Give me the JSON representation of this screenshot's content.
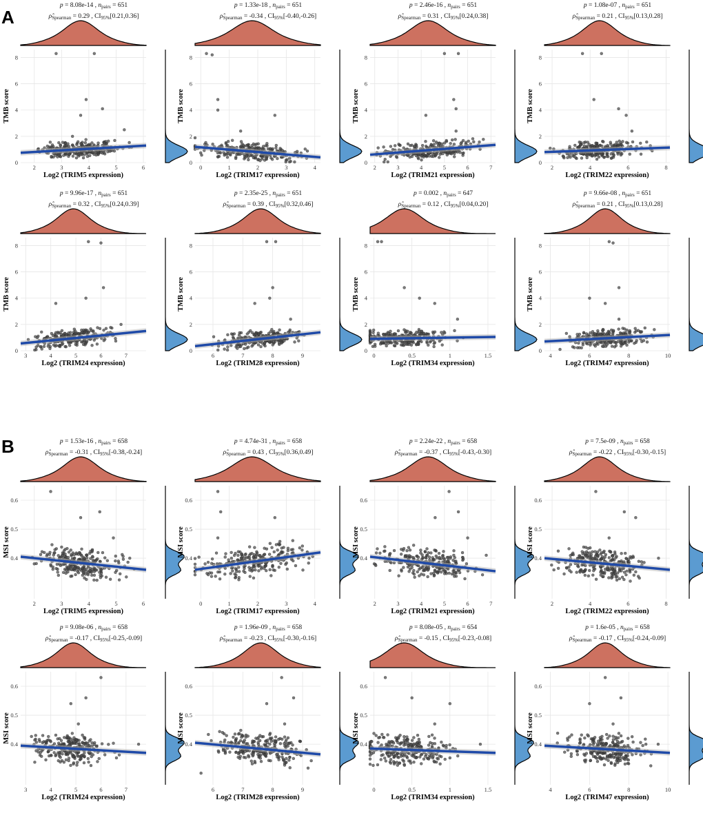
{
  "panel_labels": [
    "A",
    "B"
  ],
  "chart_data": [
    {
      "type": "scatter",
      "panel": "A",
      "gene": "TRIM5",
      "xlabel": "Log2 (TRIM5 expression)",
      "ylabel": "TMB score",
      "xlim": [
        1.5,
        6.1
      ],
      "ylim": [
        0,
        8.6
      ],
      "xticks": [
        2,
        3,
        4,
        5,
        6
      ],
      "yticks": [
        0,
        2,
        4,
        6,
        8
      ],
      "p": "8.08e-14",
      "n_pairs": "651",
      "rho": "0.29",
      "ci": "[0.21,0.36]",
      "trend": {
        "x": [
          1.5,
          6.1
        ],
        "y": [
          0.75,
          1.3
        ]
      },
      "x_center": 3.7,
      "x_sd": 0.8,
      "y_base": 0.85,
      "outliers": [
        [
          2.8,
          8.3
        ],
        [
          4.2,
          8.3
        ],
        [
          3.9,
          4.8
        ],
        [
          3.7,
          3.6
        ],
        [
          4.5,
          4.1
        ],
        [
          5.3,
          2.5
        ],
        [
          3.4,
          2.0
        ]
      ]
    },
    {
      "type": "scatter",
      "panel": "A",
      "gene": "TRIM17",
      "xlabel": "Log2 (TRIM17 expression)",
      "ylabel": "TMB score",
      "xlim": [
        -0.2,
        4.2
      ],
      "ylim": [
        0,
        8.6
      ],
      "xticks": [
        0,
        1,
        2,
        3,
        4
      ],
      "yticks": [
        0,
        2,
        4,
        6,
        8
      ],
      "p": "1.33e-18",
      "n_pairs": "651",
      "rho": "-0.34",
      "ci": "[-0.40,-0.26]",
      "trend": {
        "x": [
          -0.2,
          4.2
        ],
        "y": [
          1.2,
          0.4
        ]
      },
      "x_center": 1.8,
      "x_sd": 0.9,
      "y_base": 0.85,
      "outliers": [
        [
          0.2,
          8.3
        ],
        [
          0.4,
          8.2
        ],
        [
          0.6,
          4.8
        ],
        [
          0.6,
          4.0
        ],
        [
          2.6,
          3.6
        ],
        [
          1.4,
          2.4
        ]
      ]
    },
    {
      "type": "scatter",
      "panel": "A",
      "gene": "TRIM21",
      "xlabel": "Log2 (TRIM21 expression)",
      "ylabel": "TMB score",
      "xlim": [
        1.8,
        7.2
      ],
      "ylim": [
        0,
        8.6
      ],
      "xticks": [
        2,
        3,
        4,
        5,
        6,
        7
      ],
      "yticks": [
        0,
        2,
        4,
        6,
        8
      ],
      "p": "2.46e-16",
      "n_pairs": "651",
      "rho": "0.31",
      "ci": "[0.24,0.38]",
      "trend": {
        "x": [
          1.8,
          7.2
        ],
        "y": [
          0.6,
          1.35
        ]
      },
      "x_center": 4.3,
      "x_sd": 1.0,
      "y_base": 0.85,
      "outliers": [
        [
          5.0,
          8.3
        ],
        [
          5.6,
          8.3
        ],
        [
          5.4,
          4.8
        ],
        [
          5.5,
          4.1
        ],
        [
          4.2,
          3.6
        ],
        [
          5.5,
          2.4
        ]
      ]
    },
    {
      "type": "scatter",
      "panel": "A",
      "gene": "TRIM22",
      "xlabel": "Log2 (TRIM22 expression)",
      "ylabel": "TMB score",
      "xlim": [
        1.6,
        8.2
      ],
      "ylim": [
        0,
        8.6
      ],
      "xticks": [
        2,
        4,
        6,
        8
      ],
      "yticks": [
        0,
        2,
        4,
        6,
        8
      ],
      "p": "1.08e-07",
      "n_pairs": "651",
      "rho": "0.21",
      "ci": "[0.13,0.28]",
      "trend": {
        "x": [
          1.6,
          8.2
        ],
        "y": [
          0.8,
          1.15
        ]
      },
      "x_center": 4.5,
      "x_sd": 1.1,
      "y_base": 0.85,
      "outliers": [
        [
          3.6,
          8.3
        ],
        [
          4.6,
          8.3
        ],
        [
          4.2,
          4.8
        ],
        [
          5.5,
          4.1
        ],
        [
          5.9,
          3.6
        ],
        [
          6.2,
          2.4
        ]
      ]
    },
    {
      "type": "scatter",
      "panel": "A",
      "gene": "TRIM24",
      "xlabel": "Log2 (TRIM24 expression)",
      "ylabel": "TMB score",
      "xlim": [
        2.8,
        7.8
      ],
      "ylim": [
        0,
        8.6
      ],
      "xticks": [
        3,
        4,
        5,
        6,
        7
      ],
      "yticks": [
        0,
        2,
        4,
        6,
        8
      ],
      "p": "9.96e-17",
      "n_pairs": "651",
      "rho": "0.32",
      "ci": "[0.24,0.39]",
      "trend": {
        "x": [
          2.8,
          7.8
        ],
        "y": [
          0.55,
          1.5
        ]
      },
      "x_center": 4.9,
      "x_sd": 0.8,
      "y_base": 0.85,
      "outliers": [
        [
          5.5,
          8.3
        ],
        [
          6.0,
          8.2
        ],
        [
          6.1,
          4.8
        ],
        [
          5.4,
          4.0
        ],
        [
          4.2,
          3.6
        ],
        [
          6.8,
          2.0
        ]
      ]
    },
    {
      "type": "scatter",
      "panel": "A",
      "gene": "TRIM28",
      "xlabel": "Log2 (TRIM28 expression)",
      "ylabel": "TMB score",
      "xlim": [
        5.4,
        9.6
      ],
      "ylim": [
        0,
        8.6
      ],
      "xticks": [
        6,
        7,
        8,
        9
      ],
      "yticks": [
        0,
        2,
        4,
        6,
        8
      ],
      "p": "2.35e-25",
      "n_pairs": "651",
      "rho": "0.39",
      "ci": "[0.32,0.46]",
      "trend": {
        "x": [
          5.4,
          9.6
        ],
        "y": [
          0.35,
          1.4
        ]
      },
      "x_center": 7.6,
      "x_sd": 0.7,
      "y_base": 0.85,
      "outliers": [
        [
          7.8,
          8.3
        ],
        [
          8.1,
          8.3
        ],
        [
          8.0,
          4.8
        ],
        [
          7.9,
          4.0
        ],
        [
          7.4,
          3.6
        ],
        [
          8.6,
          2.4
        ]
      ]
    },
    {
      "type": "scatter",
      "panel": "A",
      "gene": "TRIM34",
      "xlabel": "Log2 (TRIM34 expression)",
      "ylabel": "TMB score",
      "xlim": [
        -0.05,
        1.6
      ],
      "ylim": [
        0,
        8.6
      ],
      "xticks": [
        0.0,
        0.5,
        1.0,
        1.5
      ],
      "yticks": [
        0,
        2,
        4,
        6,
        8
      ],
      "p": "0.002",
      "n_pairs": "647",
      "rho": "0.12",
      "ci": "[0.04,0.20]",
      "trend": {
        "x": [
          -0.05,
          1.6
        ],
        "y": [
          0.9,
          1.05
        ]
      },
      "x_center": 0.4,
      "x_sd": 0.3,
      "y_base": 0.85,
      "outliers": [
        [
          0.05,
          8.3
        ],
        [
          0.1,
          8.3
        ],
        [
          0.4,
          4.8
        ],
        [
          0.6,
          4.0
        ],
        [
          0.8,
          3.6
        ],
        [
          1.1,
          2.4
        ]
      ]
    },
    {
      "type": "scatter",
      "panel": "A",
      "gene": "TRIM47",
      "xlabel": "Log2 (TRIM47 expression)",
      "ylabel": "TMB score",
      "xlim": [
        3.7,
        10.1
      ],
      "ylim": [
        0,
        8.6
      ],
      "xticks": [
        4,
        6,
        8,
        10
      ],
      "yticks": [
        0,
        2,
        4,
        6,
        8
      ],
      "p": "9.66e-08",
      "n_pairs": "651",
      "rho": "0.21",
      "ci": "[0.13,0.28]",
      "trend": {
        "x": [
          3.7,
          10.1
        ],
        "y": [
          0.7,
          1.2
        ]
      },
      "x_center": 6.8,
      "x_sd": 1.0,
      "y_base": 0.85,
      "outliers": [
        [
          7.0,
          8.3
        ],
        [
          7.2,
          8.2
        ],
        [
          7.5,
          4.8
        ],
        [
          6.0,
          4.0
        ],
        [
          6.8,
          3.6
        ],
        [
          7.5,
          2.4
        ]
      ]
    },
    {
      "type": "scatter",
      "panel": "B",
      "gene": "TRIM5",
      "xlabel": "Log2 (TRIM5 expression)",
      "ylabel": "MSI score",
      "xlim": [
        1.5,
        6.1
      ],
      "ylim": [
        0.26,
        0.65
      ],
      "xticks": [
        2,
        3,
        4,
        5,
        6
      ],
      "yticks": [
        0.4,
        0.5,
        0.6
      ],
      "p": "1.53e-16",
      "n_pairs": "658",
      "rho": "-0.31",
      "ci": "[-0.38,-0.24]",
      "trend": {
        "x": [
          1.5,
          6.1
        ],
        "y": [
          0.405,
          0.36
        ]
      },
      "x_center": 3.7,
      "x_sd": 0.8,
      "y_base": 0.385,
      "outliers": [
        [
          2.6,
          0.63
        ],
        [
          4.4,
          0.56
        ],
        [
          3.7,
          0.54
        ],
        [
          4.9,
          0.47
        ],
        [
          5.5,
          0.4
        ]
      ]
    },
    {
      "type": "scatter",
      "panel": "B",
      "gene": "TRIM17",
      "xlabel": "Log2 (TRIM17 expression)",
      "ylabel": "MSI score",
      "xlim": [
        -0.2,
        4.2
      ],
      "ylim": [
        0.26,
        0.65
      ],
      "xticks": [
        0,
        1,
        2,
        3,
        4
      ],
      "yticks": [
        0.4,
        0.5,
        0.6
      ],
      "p": "4.74e-31",
      "n_pairs": "658",
      "rho": "0.43",
      "ci": "[0.36,0.49]",
      "trend": {
        "x": [
          -0.2,
          4.2
        ],
        "y": [
          0.36,
          0.42
        ]
      },
      "x_center": 1.8,
      "x_sd": 0.9,
      "y_base": 0.385,
      "outliers": [
        [
          0.6,
          0.63
        ],
        [
          0.7,
          0.56
        ],
        [
          2.6,
          0.54
        ],
        [
          0.6,
          0.47
        ],
        [
          3.8,
          0.4
        ]
      ]
    },
    {
      "type": "scatter",
      "panel": "B",
      "gene": "TRIM21",
      "xlabel": "Log2 (TRIM21 expression)",
      "ylabel": "MSI score",
      "xlim": [
        1.8,
        7.2
      ],
      "ylim": [
        0.26,
        0.65
      ],
      "xticks": [
        2,
        3,
        4,
        5,
        6,
        7
      ],
      "yticks": [
        0.4,
        0.5,
        0.6
      ],
      "p": "2.24e-22",
      "n_pairs": "658",
      "rho": "-0.37",
      "ci": "[-0.43,-0.30]",
      "trend": {
        "x": [
          1.8,
          7.2
        ],
        "y": [
          0.405,
          0.355
        ]
      },
      "x_center": 4.3,
      "x_sd": 1.0,
      "y_base": 0.385,
      "outliers": [
        [
          5.2,
          0.63
        ],
        [
          5.6,
          0.56
        ],
        [
          4.6,
          0.54
        ],
        [
          6.0,
          0.47
        ],
        [
          6.8,
          0.41
        ]
      ]
    },
    {
      "type": "scatter",
      "panel": "B",
      "gene": "TRIM22",
      "xlabel": "Log2 (TRIM22 expression)",
      "ylabel": "MSI score",
      "xlim": [
        1.6,
        8.2
      ],
      "ylim": [
        0.26,
        0.65
      ],
      "xticks": [
        2,
        4,
        6,
        8
      ],
      "yticks": [
        0.4,
        0.5,
        0.6
      ],
      "p": "7.5e-09",
      "n_pairs": "658",
      "rho": "-0.22",
      "ci": "[-0.30,-0.15]",
      "trend": {
        "x": [
          1.6,
          8.2
        ],
        "y": [
          0.4,
          0.36
        ]
      },
      "x_center": 4.5,
      "x_sd": 1.1,
      "y_base": 0.385,
      "outliers": [
        [
          4.3,
          0.63
        ],
        [
          5.8,
          0.56
        ],
        [
          6.4,
          0.54
        ],
        [
          5.0,
          0.47
        ],
        [
          7.6,
          0.4
        ]
      ]
    },
    {
      "type": "scatter",
      "panel": "B",
      "gene": "TRIM24",
      "xlabel": "Log2 (TRIM24 expression)",
      "ylabel": "MSI score",
      "xlim": [
        2.8,
        7.8
      ],
      "ylim": [
        0.26,
        0.65
      ],
      "xticks": [
        3,
        4,
        5,
        6,
        7
      ],
      "yticks": [
        0.4,
        0.5,
        0.6
      ],
      "p": "9.08e-06",
      "n_pairs": "658",
      "rho": "-0.17",
      "ci": "[-0.25,-0.09]",
      "trend": {
        "x": [
          2.8,
          7.8
        ],
        "y": [
          0.395,
          0.37
        ]
      },
      "x_center": 4.9,
      "x_sd": 0.8,
      "y_base": 0.385,
      "outliers": [
        [
          6.0,
          0.63
        ],
        [
          5.4,
          0.56
        ],
        [
          4.8,
          0.54
        ],
        [
          5.1,
          0.47
        ],
        [
          7.5,
          0.4
        ]
      ]
    },
    {
      "type": "scatter",
      "panel": "B",
      "gene": "TRIM28",
      "xlabel": "Log2 (TRIM28 expression)",
      "ylabel": "MSI score",
      "xlim": [
        5.4,
        9.6
      ],
      "ylim": [
        0.26,
        0.65
      ],
      "xticks": [
        6,
        7,
        8,
        9
      ],
      "yticks": [
        0.4,
        0.5,
        0.6
      ],
      "p": "1.96e-09",
      "n_pairs": "658",
      "rho": "-0.23",
      "ci": "[-0.30,-0.16]",
      "trend": {
        "x": [
          5.4,
          9.6
        ],
        "y": [
          0.405,
          0.365
        ]
      },
      "x_center": 7.6,
      "x_sd": 0.7,
      "y_base": 0.385,
      "outliers": [
        [
          8.3,
          0.63
        ],
        [
          8.7,
          0.56
        ],
        [
          7.8,
          0.54
        ],
        [
          8.4,
          0.47
        ],
        [
          5.6,
          0.3
        ]
      ]
    },
    {
      "type": "scatter",
      "panel": "B",
      "gene": "TRIM34",
      "xlabel": "Log2 (TRIM34 expression)",
      "ylabel": "MSI score",
      "xlim": [
        -0.05,
        1.6
      ],
      "ylim": [
        0.26,
        0.65
      ],
      "xticks": [
        0.0,
        0.5,
        1.0,
        1.5
      ],
      "yticks": [
        0.4,
        0.5,
        0.6
      ],
      "p": "8.08e-05",
      "n_pairs": "654",
      "rho": "-0.15",
      "ci": "[-0.23,-0.08]",
      "trend": {
        "x": [
          -0.05,
          1.6
        ],
        "y": [
          0.385,
          0.37
        ]
      },
      "x_center": 0.4,
      "x_sd": 0.3,
      "y_base": 0.385,
      "outliers": [
        [
          0.15,
          0.63
        ],
        [
          0.5,
          0.56
        ],
        [
          1.0,
          0.54
        ],
        [
          0.8,
          0.47
        ],
        [
          1.4,
          0.4
        ]
      ]
    },
    {
      "type": "scatter",
      "panel": "B",
      "gene": "TRIM47",
      "xlabel": "Log2 (TRIM47 expression)",
      "ylabel": "MSI score",
      "xlim": [
        3.7,
        10.1
      ],
      "ylim": [
        0.26,
        0.65
      ],
      "xticks": [
        4,
        6,
        8,
        10
      ],
      "yticks": [
        0.4,
        0.5,
        0.6
      ],
      "p": "1.6e-05",
      "n_pairs": "658",
      "rho": "-0.17",
      "ci": "[-0.24,-0.09]",
      "trend": {
        "x": [
          3.7,
          10.1
        ],
        "y": [
          0.395,
          0.37
        ]
      },
      "x_center": 6.8,
      "x_sd": 1.0,
      "y_base": 0.385,
      "outliers": [
        [
          6.8,
          0.63
        ],
        [
          7.6,
          0.56
        ],
        [
          6.0,
          0.54
        ],
        [
          7.2,
          0.47
        ],
        [
          9.5,
          0.4
        ]
      ]
    }
  ],
  "colors": {
    "density_top": "#cd7160",
    "density_right": "#5b9bd1",
    "trend": "#1f4aa8",
    "band": "#b5b5b5",
    "point": "#4a4a4a",
    "grid": "#e6e6e6"
  }
}
